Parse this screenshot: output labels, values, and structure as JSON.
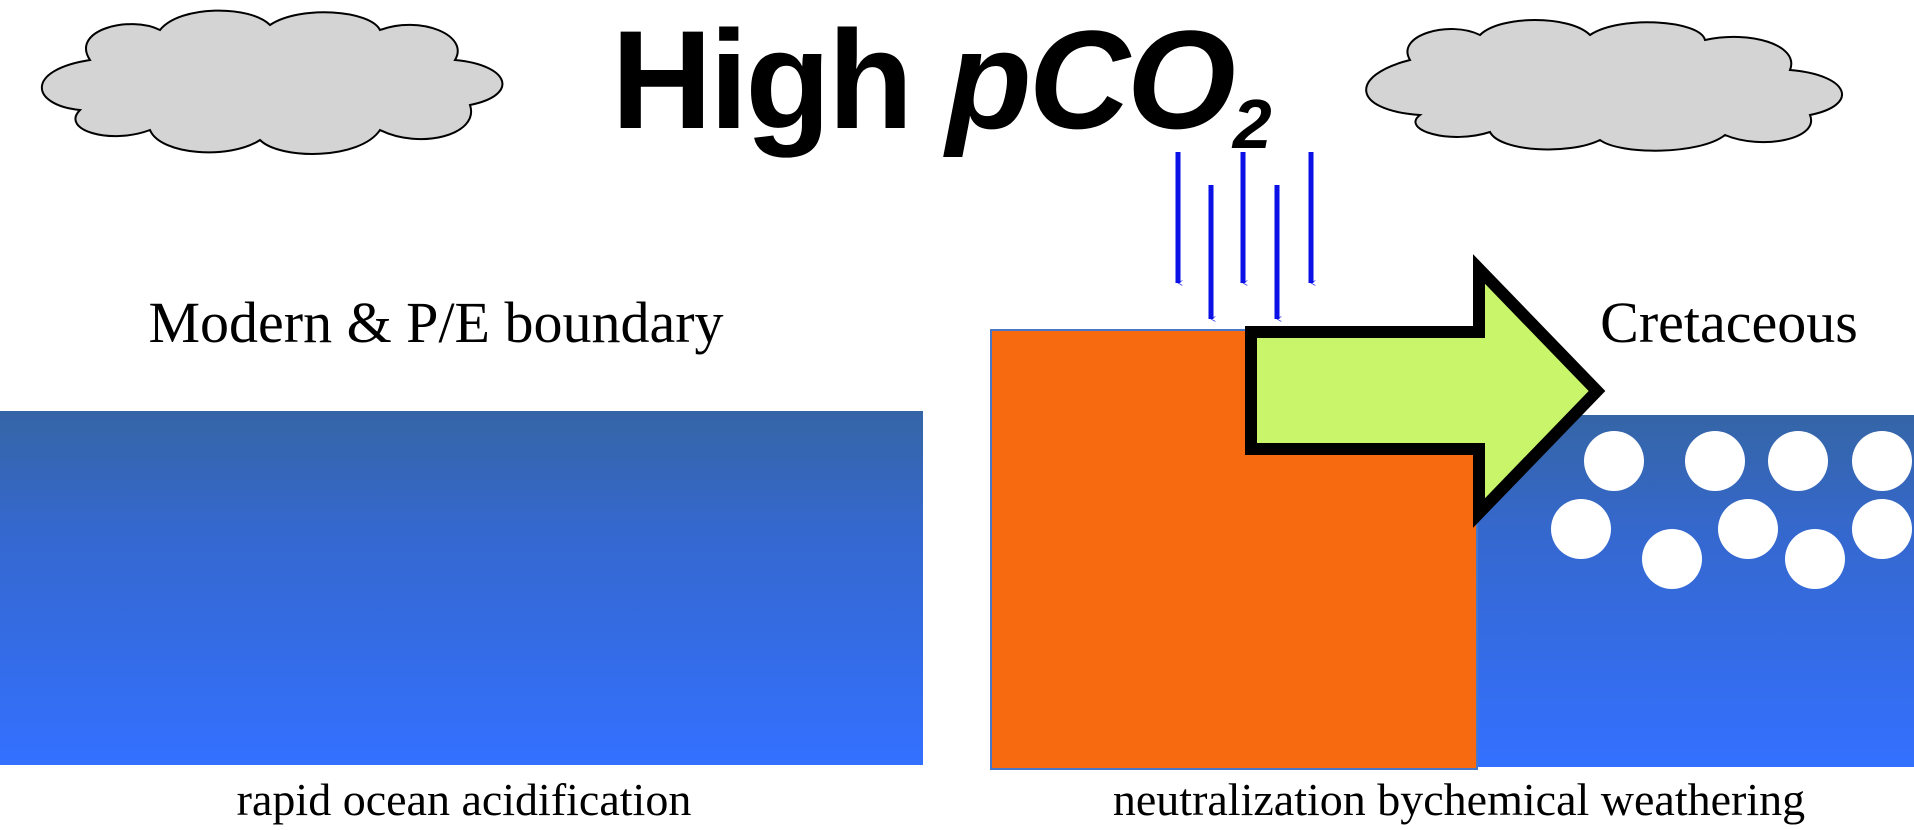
{
  "title": {
    "main": "High",
    "variable": "pCO",
    "subscript": "2"
  },
  "left_panel": {
    "label": "Modern & P/E boundary",
    "caption": "rapid ocean acidification"
  },
  "right_panel": {
    "label": "Cretaceous",
    "caption": "neutralization bychemical weathering"
  }
}
